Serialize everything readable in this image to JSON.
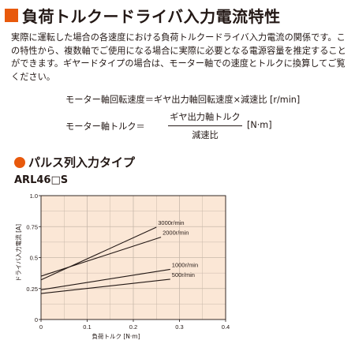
{
  "title": "負荷トルクードライバ入力電流特性",
  "intro": "実際に運転した場合の各速度における負荷トルクードライバ入力電流の関係です。この特性から、複数軸でご使用になる場合に実際に必要となる電源容量を推定することができます。ギヤードタイプの場合は、モーター軸での速度とトルクに換算してご覧ください。",
  "formula1": "モーター軸回転速度＝ギヤ出力軸回転速度×減速比 [r/min]",
  "formula2": {
    "lhs": "モーター軸トルク＝",
    "numerator": "ギヤ出力軸トルク",
    "denominator": "減速比",
    "unit": "[N·m]"
  },
  "section_title": "パルス列入力タイプ",
  "model": "ARL46□S",
  "colors": {
    "accent": "#e8590c",
    "plot_bg": "#fbe7d6",
    "grid": "#c8b8aa",
    "line": "#231815"
  },
  "chart_data": {
    "type": "line",
    "title": "",
    "xlabel": "負荷トルク [N·m]",
    "ylabel": "ドライバ入力電流 [A]",
    "xlim": [
      0,
      0.4
    ],
    "ylim": [
      0,
      1.0
    ],
    "x_ticks": [
      "0",
      "0.1",
      "0.2",
      "0.3",
      "0.4"
    ],
    "y_ticks": [
      "0",
      "0.25",
      "0.5",
      "0.75",
      "1.0"
    ],
    "grid": true,
    "series": [
      {
        "name": "3000r/min",
        "x": [
          0,
          0.25
        ],
        "y": [
          0.32,
          0.745
        ]
      },
      {
        "name": "2000r/min",
        "x": [
          0,
          0.26
        ],
        "y": [
          0.35,
          0.665
        ]
      },
      {
        "name": "1000r/min",
        "x": [
          0,
          0.28
        ],
        "y": [
          0.24,
          0.405
        ]
      },
      {
        "name": "500r/min",
        "x": [
          0,
          0.28
        ],
        "y": [
          0.21,
          0.325
        ]
      }
    ]
  }
}
